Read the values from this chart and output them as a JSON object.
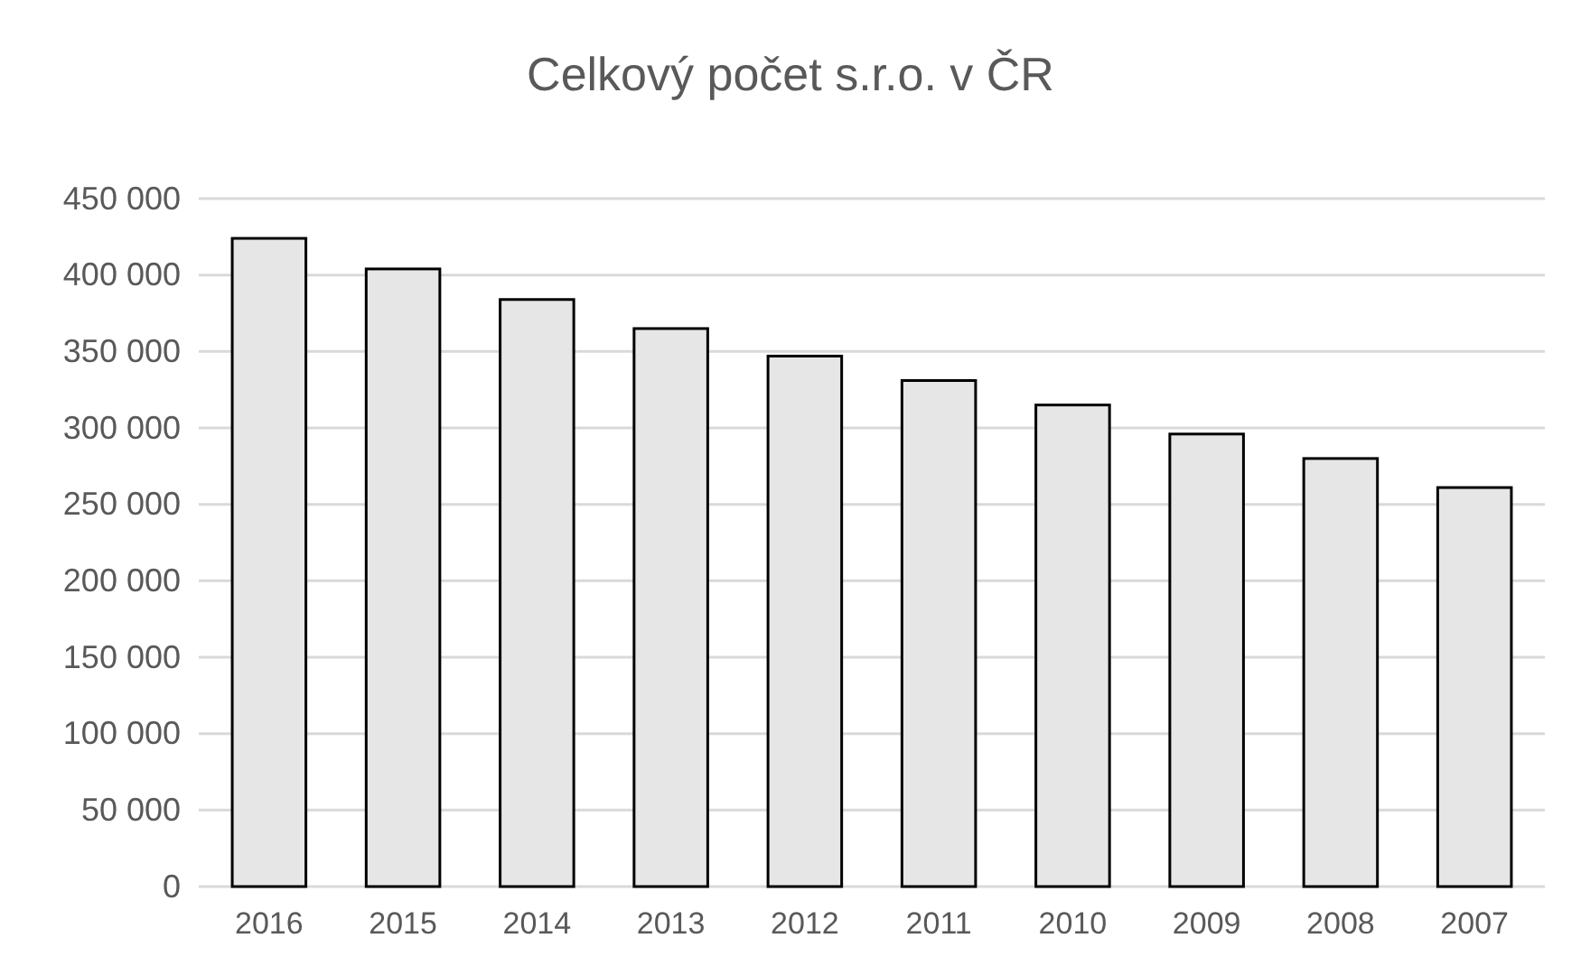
{
  "chart_data": {
    "type": "bar",
    "title": "Celkový počet s.r.o. v ČR",
    "categories": [
      "2016",
      "2015",
      "2014",
      "2013",
      "2012",
      "2011",
      "2010",
      "2009",
      "2008",
      "2007"
    ],
    "values": [
      424000,
      404000,
      384000,
      365000,
      347000,
      331000,
      315000,
      296000,
      280000,
      261000
    ],
    "color": "#e6e6e6",
    "ylim": [
      0,
      450000
    ],
    "yticks": [
      {
        "value": 0,
        "label": "0"
      },
      {
        "value": 50000,
        "label": "50 000"
      },
      {
        "value": 100000,
        "label": "100 000"
      },
      {
        "value": 150000,
        "label": "150 000"
      },
      {
        "value": 200000,
        "label": "200 000"
      },
      {
        "value": 250000,
        "label": "250 000"
      },
      {
        "value": 300000,
        "label": "300 000"
      },
      {
        "value": 350000,
        "label": "350 000"
      },
      {
        "value": 400000,
        "label": "400 000"
      },
      {
        "value": 450000,
        "label": "450 000"
      }
    ],
    "grid": true
  }
}
